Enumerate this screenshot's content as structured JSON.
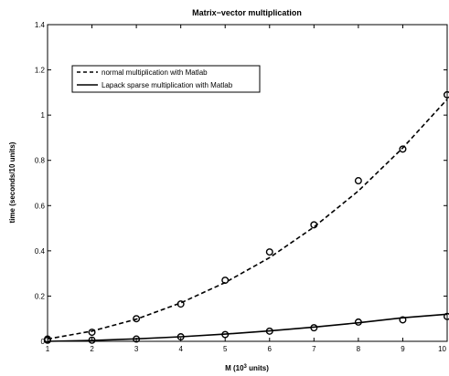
{
  "chart_data": {
    "type": "line",
    "title": "Matrix−vector multiplication",
    "xlabel": {
      "prefix": "M (10",
      "sup": "3",
      "suffix": " units)"
    },
    "ylabel": "time (seconds/10 units)",
    "xlim": [
      1,
      10
    ],
    "ylim": [
      0,
      1.4
    ],
    "xticks": [
      "1",
      "2",
      "3",
      "4",
      "5",
      "6",
      "7",
      "8",
      "9",
      "10"
    ],
    "yticks": [
      "0",
      "0.2",
      "0.4",
      "0.6",
      "0.8",
      "1",
      "1.2",
      "1.4"
    ],
    "grid": false,
    "legend_position": "top-left",
    "x": [
      1,
      2,
      3,
      4,
      5,
      6,
      7,
      8,
      9,
      10
    ],
    "series": [
      {
        "name": "normal multiplication with Matlab",
        "line_style": "dashed",
        "color": "#000000",
        "points": [
          0.01,
          0.04,
          0.1,
          0.165,
          0.27,
          0.395,
          0.515,
          0.71,
          0.85,
          1.09
        ],
        "fit": [
          0.01,
          0.045,
          0.098,
          0.17,
          0.26,
          0.37,
          0.505,
          0.665,
          0.855,
          1.07
        ]
      },
      {
        "name": "Lapack sparse multiplication with Matlab",
        "line_style": "solid",
        "color": "#000000",
        "points": [
          0.005,
          0.005,
          0.01,
          0.02,
          0.03,
          0.045,
          0.06,
          0.085,
          0.095,
          0.11
        ],
        "fit": [
          0.0,
          0.004,
          0.011,
          0.02,
          0.032,
          0.046,
          0.063,
          0.082,
          0.104,
          0.12
        ]
      }
    ]
  }
}
